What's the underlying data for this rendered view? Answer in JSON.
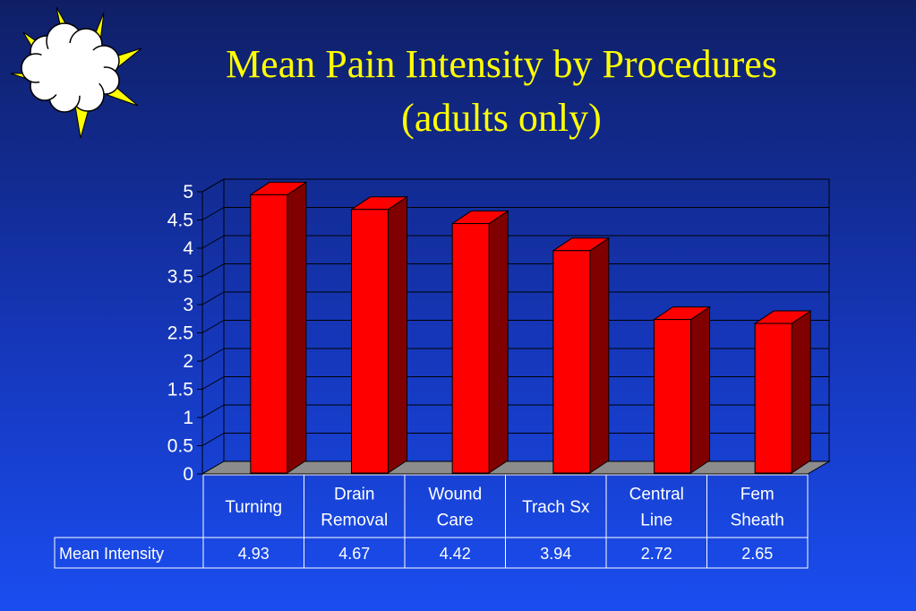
{
  "title": {
    "line1": "Mean Pain Intensity by Procedures",
    "line2": "(adults only)"
  },
  "logo": {
    "icon": "sun-cloud-icon"
  },
  "colors": {
    "title": "#ffff00",
    "bar_front": "#ff0000",
    "bar_side": "#800000",
    "floor": "#8c8c8c",
    "text": "#ffffff"
  },
  "chart_data": {
    "type": "bar",
    "title": "Mean Pain Intensity by Procedures (adults only)",
    "categories": [
      [
        "Turning"
      ],
      [
        "Drain",
        "Removal"
      ],
      [
        "Wound",
        "Care"
      ],
      [
        "Trach Sx"
      ],
      [
        "Central",
        "Line"
      ],
      [
        "Fem",
        "Sheath"
      ]
    ],
    "series": [
      {
        "name": "Mean Intensity",
        "values": [
          4.93,
          4.67,
          4.42,
          3.94,
          2.72,
          2.65
        ]
      }
    ],
    "value_labels": [
      "4.93",
      "4.67",
      "4.42",
      "3.94",
      "2.72",
      "2.65"
    ],
    "yticks": [
      "0",
      "0.5",
      "1",
      "1.5",
      "2",
      "2.5",
      "3",
      "3.5",
      "4",
      "4.5",
      "5"
    ],
    "ylim": [
      0,
      5
    ],
    "grid": true,
    "legend": "data table below chart"
  }
}
